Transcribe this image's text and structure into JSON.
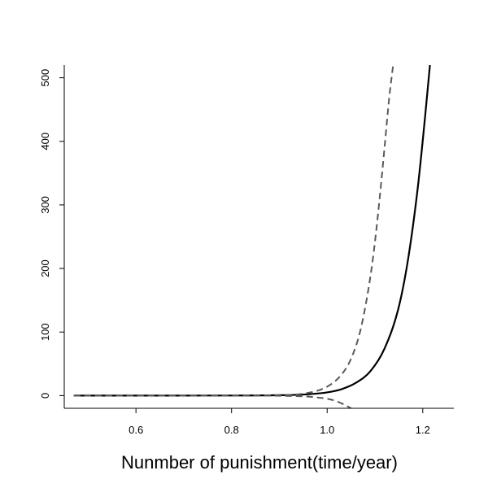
{
  "chart_data": {
    "type": "line",
    "title": "",
    "xlabel": "Nunmber of punishment(time/year)",
    "ylabel": "",
    "xlim": [
      0.45,
      1.265
    ],
    "ylim": [
      -20,
      520
    ],
    "x_ticks": [
      0.6,
      0.8,
      1.0,
      1.2
    ],
    "x_tick_labels": [
      "0.6",
      "0.8",
      "1.0",
      "1.2"
    ],
    "y_ticks": [
      0,
      100,
      200,
      300,
      400,
      500
    ],
    "y_tick_labels": [
      "0",
      "100",
      "200",
      "300",
      "400",
      "500"
    ],
    "grid": false,
    "legend": "none",
    "series": [
      {
        "style": "solid",
        "color": "#000000",
        "x": [
          0.47,
          0.6,
          0.7,
          0.8,
          0.9,
          0.95,
          1.0,
          1.03,
          1.06,
          1.09,
          1.12,
          1.15,
          1.17,
          1.19,
          1.205,
          1.215
        ],
        "y": [
          0,
          0,
          0,
          0.1,
          0.6,
          1.7,
          5,
          10,
          20,
          38,
          74,
          140,
          218,
          330,
          440,
          520
        ]
      },
      {
        "style": "dashed",
        "color": "#595959",
        "x": [
          0.47,
          0.6,
          0.7,
          0.8,
          0.9,
          0.95,
          1.0,
          1.03,
          1.05,
          1.07,
          1.09,
          1.1,
          1.11,
          1.12,
          1.13,
          1.138
        ],
        "y": [
          0,
          0,
          0,
          0.1,
          0.8,
          3,
          14,
          33,
          58,
          104,
          185,
          242,
          312,
          390,
          470,
          520
        ]
      },
      {
        "style": "dashed",
        "color": "#595959",
        "x": [
          0.47,
          0.6,
          0.7,
          0.8,
          0.9,
          0.95,
          0.98,
          1.0,
          1.02,
          1.035,
          1.05
        ],
        "y": [
          0,
          0,
          0,
          0,
          -0.3,
          -1.2,
          -3,
          -5,
          -9,
          -14,
          -20
        ]
      }
    ]
  }
}
